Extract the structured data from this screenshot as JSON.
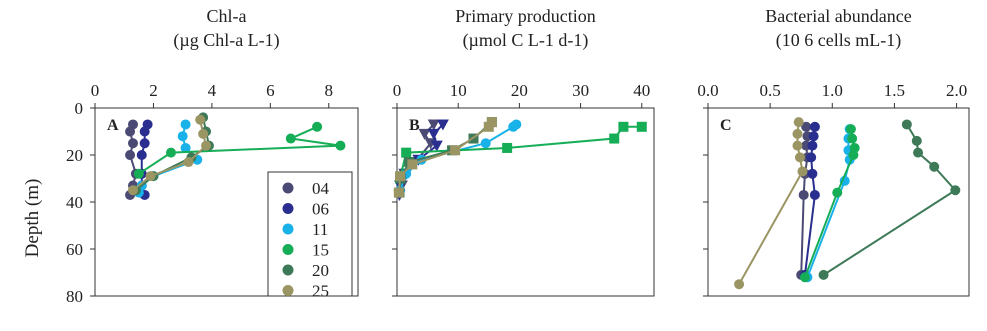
{
  "ylabel": "Depth (m)",
  "legend": [
    {
      "label": "04",
      "color": "#4b4a74"
    },
    {
      "label": "06",
      "color": "#2a2f8f"
    },
    {
      "label": "11",
      "color": "#18b2e8"
    },
    {
      "label": "15",
      "color": "#16ad57"
    },
    {
      "label": "20",
      "color": "#3e7a58"
    },
    {
      "label": "25",
      "color": "#9a9563"
    }
  ],
  "chart_data": [
    {
      "type": "line",
      "panel_letter": "A",
      "title_line1": "Chl-a",
      "title_line2": "(µg Chl-a  L-1)",
      "xlim": [
        0,
        9
      ],
      "xticks": [
        "0",
        "2",
        "4",
        "6",
        "8"
      ],
      "ylim": [
        0,
        80
      ],
      "yticks": [
        "0",
        "20",
        "40",
        "60",
        "80"
      ],
      "ylabel": "Depth (m)",
      "marker": "circle",
      "grid": false,
      "series": [
        {
          "name": "04",
          "color": "#4b4a74",
          "x": [
            1.3,
            1.2,
            1.3,
            1.2,
            1.4,
            1.3,
            1.2
          ],
          "y": [
            7,
            10,
            15,
            20,
            28,
            33,
            37
          ]
        },
        {
          "name": "06",
          "color": "#2a2f8f",
          "x": [
            1.8,
            1.7,
            1.7,
            1.6,
            1.6,
            1.6,
            1.7
          ],
          "y": [
            7,
            10,
            15,
            20,
            28,
            33,
            37
          ]
        },
        {
          "name": "11",
          "color": "#18b2e8",
          "x": [
            3.1,
            3.0,
            3.1,
            3.5,
            2.0,
            1.6,
            1.5
          ],
          "y": [
            7,
            12,
            17,
            22,
            29,
            33,
            36
          ]
        },
        {
          "name": "15",
          "color": "#16ad57",
          "x": [
            7.6,
            6.7,
            8.4,
            2.6,
            1.5
          ],
          "y": [
            8,
            13,
            16,
            19,
            28
          ]
        },
        {
          "name": "20",
          "color": "#3e7a58",
          "x": [
            3.7,
            3.8,
            3.9,
            3.3,
            2.0,
            1.4
          ],
          "y": [
            4,
            10,
            16,
            21,
            29,
            35
          ]
        },
        {
          "name": "25",
          "color": "#9a9563",
          "x": [
            3.6,
            3.7,
            3.8,
            3.2,
            1.9,
            1.3
          ],
          "y": [
            5,
            11,
            16,
            23,
            29,
            35
          ]
        }
      ]
    },
    {
      "type": "line",
      "panel_letter": "B",
      "title_line1": "Primary production",
      "title_line2": "(µmol C L-1 d-1)",
      "xlim": [
        0,
        42
      ],
      "xticks": [
        "0",
        "10",
        "20",
        "30",
        "40"
      ],
      "ylim": [
        0,
        80
      ],
      "yticks": [
        "0",
        "20",
        "40",
        "60",
        "80"
      ],
      "marker": "mixed",
      "grid": false,
      "series": [
        {
          "name": "04",
          "color": "#4b4a74",
          "marker": "triangle",
          "x": [
            6.0,
            4.5,
            5.5,
            3.0,
            1.2,
            0.8
          ],
          "y": [
            7,
            11,
            15,
            23,
            28,
            33
          ]
        },
        {
          "name": "06",
          "color": "#2a2f8f",
          "marker": "triangle",
          "x": [
            7.5,
            6.0,
            6.5,
            3.5,
            1.5,
            0.5,
            0.4
          ],
          "y": [
            7,
            11,
            16,
            22,
            28,
            33,
            37
          ]
        },
        {
          "name": "11",
          "color": "#18b2e8",
          "marker": "circle",
          "x": [
            19.5,
            19.0,
            14.5,
            4.0,
            1.5,
            0.5
          ],
          "y": [
            7,
            8,
            15,
            22,
            28,
            35
          ]
        },
        {
          "name": "15",
          "color": "#16ad57",
          "marker": "square",
          "x": [
            40.0,
            37.0,
            35.5,
            18.0,
            1.5,
            0.5
          ],
          "y": [
            8,
            8,
            13,
            17,
            19,
            30
          ]
        },
        {
          "name": "20",
          "color": "#3e7a58",
          "marker": "square",
          "x": [
            15.5,
            12.5,
            9.0,
            2.0,
            0.6,
            0.4
          ],
          "y": [
            6,
            13,
            18,
            23,
            30,
            36
          ]
        },
        {
          "name": "25",
          "color": "#9a9563",
          "marker": "square",
          "x": [
            15.5,
            15.0,
            9.5,
            2.5,
            0.5,
            0.3
          ],
          "y": [
            6,
            8,
            18,
            24,
            29,
            36
          ]
        }
      ]
    },
    {
      "type": "line",
      "panel_letter": "C",
      "title_line1": "Bacterial abundance",
      "title_line2": "(10 6 cells mL-1)",
      "xlim": [
        0,
        2.1
      ],
      "xticks": [
        "0.0",
        "0.5",
        "1.0",
        "1.5",
        "2.0"
      ],
      "ylim": [
        0,
        80
      ],
      "yticks": [
        "0",
        "20",
        "40",
        "60",
        "80"
      ],
      "marker": "circle",
      "grid": false,
      "series": [
        {
          "name": "04",
          "color": "#4b4a74",
          "x": [
            0.79,
            0.8,
            0.79,
            0.8,
            0.78,
            0.77,
            0.75
          ],
          "y": [
            8,
            12,
            16,
            21,
            28,
            37,
            71
          ]
        },
        {
          "name": "06",
          "color": "#2a2f8f",
          "x": [
            0.86,
            0.85,
            0.84,
            0.83,
            0.84,
            0.86,
            0.78
          ],
          "y": [
            8,
            12,
            16,
            21,
            28,
            37,
            71
          ]
        },
        {
          "name": "11",
          "color": "#18b2e8",
          "x": [
            1.14,
            1.13,
            1.13,
            1.14,
            1.1,
            0.8
          ],
          "y": [
            9,
            13,
            18,
            22,
            31,
            72
          ]
        },
        {
          "name": "15",
          "color": "#16ad57",
          "x": [
            1.15,
            1.16,
            1.18,
            1.17,
            1.04,
            0.78
          ],
          "y": [
            9,
            13,
            17,
            20,
            36,
            72
          ]
        },
        {
          "name": "20",
          "color": "#3e7a58",
          "x": [
            1.6,
            1.68,
            1.69,
            1.82,
            1.99,
            0.93
          ],
          "y": [
            7,
            14,
            19,
            25,
            35,
            71
          ]
        },
        {
          "name": "25",
          "color": "#9a9563",
          "x": [
            0.73,
            0.72,
            0.72,
            0.74,
            0.76,
            0.25
          ],
          "y": [
            6,
            11,
            16,
            21,
            27,
            75
          ]
        }
      ]
    }
  ]
}
